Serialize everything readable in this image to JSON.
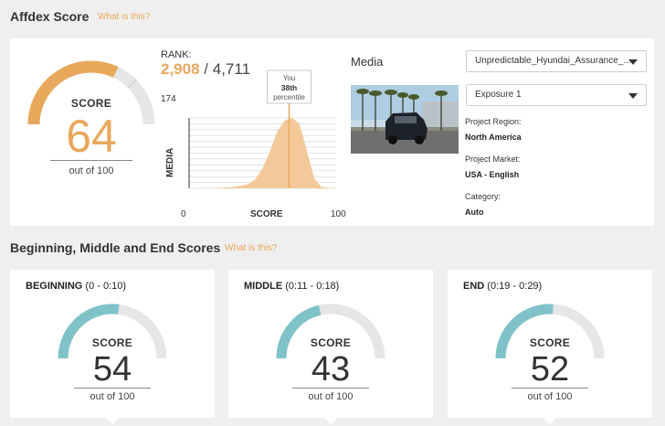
{
  "affdex": {
    "title": "Affdex Score",
    "what_link": "What is this?",
    "score_label": "SCORE",
    "score": 64,
    "out_of_label": "out of 100",
    "gauge_color": "#e8a85c"
  },
  "rank": {
    "label": "RANK:",
    "value": "2,908",
    "separator": "/",
    "total": "4,711",
    "y_max_label": "174",
    "y_axis_label": "MEDIA",
    "x_axis_label": "SCORE",
    "x_min_label": "0",
    "x_max_label": "100",
    "marker_line1": "You",
    "marker_line2": "38th",
    "marker_line3": "percentile"
  },
  "media": {
    "heading": "Media",
    "video_dropdown": "Unpredictable_Hyundai_Assurance_...",
    "exposure_dropdown": "Exposure 1",
    "region_label": "Project Region:",
    "region_value": "North America",
    "market_label": "Project Market:",
    "market_value": "USA - English",
    "category_label": "Category:",
    "category_value": "Auto"
  },
  "segments": {
    "title": "Beginning, Middle and End Scores",
    "what_link": "What is this?",
    "gauge_color": "#7fc3c9",
    "items": [
      {
        "name": "BEGINNING",
        "range": "(0 - 0:10)",
        "score_label": "SCORE",
        "score": 54,
        "out_of_label": "out of 100"
      },
      {
        "name": "MIDDLE",
        "range": "(0:11 - 0:18)",
        "score_label": "SCORE",
        "score": 43,
        "out_of_label": "out of 100"
      },
      {
        "name": "END",
        "range": "(0:19 - 0:29)",
        "score_label": "SCORE",
        "score": 52,
        "out_of_label": "out of 100"
      }
    ]
  },
  "chart_data": {
    "type": "area",
    "ylabel": "MEDIA",
    "xlabel": "SCORE",
    "xlim": [
      0,
      100
    ],
    "ylim": [
      0,
      174
    ],
    "x": [
      0,
      10,
      20,
      30,
      40,
      45,
      50,
      55,
      60,
      65,
      70,
      75,
      80,
      85,
      90,
      100
    ],
    "y": [
      0,
      0,
      1,
      3,
      10,
      22,
      50,
      92,
      140,
      168,
      174,
      160,
      95,
      25,
      3,
      0
    ],
    "marker": {
      "x": 68,
      "label": "You 38th percentile"
    },
    "color": "#f3c99a",
    "grid": true
  }
}
